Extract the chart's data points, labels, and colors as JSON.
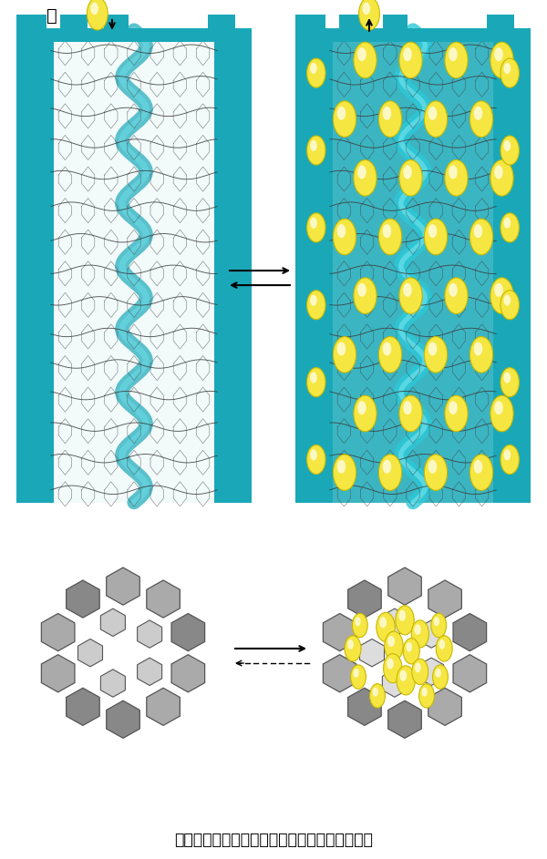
{
  "background_color": "#ffffff",
  "title_text": "锨",
  "caption_text": "借助锨在电极内的插入与脱离，进行放电和充电",
  "li_color": "#f5e642",
  "li_edge_color": "#c8b800",
  "teal_color": "#1aa8b8",
  "figsize": [
    6.0,
    9.43
  ],
  "dpi": 100
}
